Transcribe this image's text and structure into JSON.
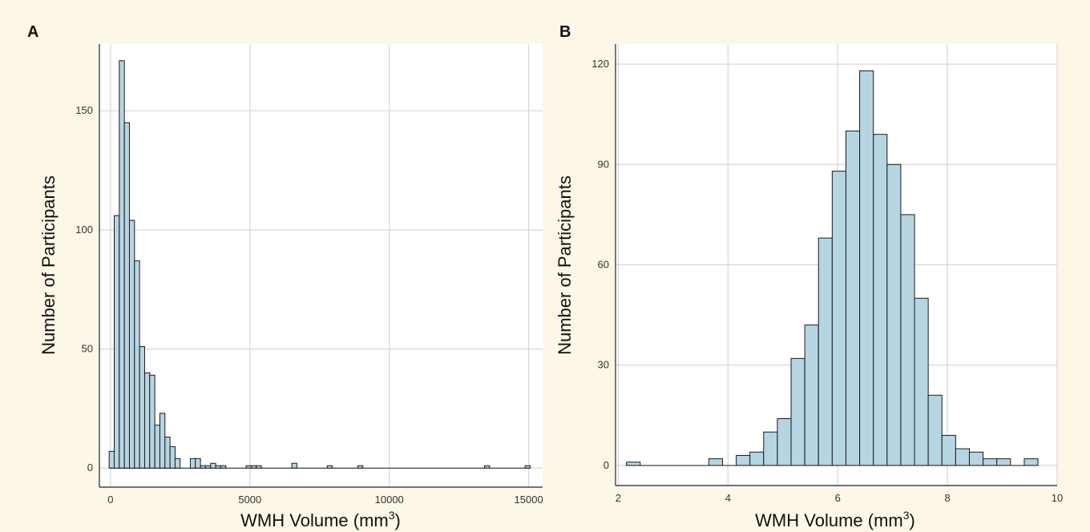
{
  "colors": {
    "background": "#fdf7e8",
    "plot_background": "#ffffff",
    "bar_fill": "#b6d5e2",
    "bar_stroke": "#1a1a1a",
    "grid": "#d3d3d3",
    "axis": "#222222"
  },
  "chart_data": [
    {
      "panel": "A",
      "type": "bar",
      "subtype": "histogram",
      "xlabel": "WMH Volume (mm",
      "xlabel_superscript": "3",
      "xlabel_suffix": ")",
      "ylabel": "Number of Participants",
      "xlim": [
        -400,
        15500
      ],
      "ylim": [
        -8,
        178
      ],
      "xticks": [
        0,
        5000,
        10000,
        15000
      ],
      "yticks": [
        0,
        50,
        100,
        150
      ],
      "xtick_labels": [
        "0",
        "5000",
        "10000",
        "15000"
      ],
      "ytick_labels": [
        "0",
        "50",
        "100",
        "150"
      ],
      "grid": true,
      "bin_width": 182,
      "bins": [
        {
          "x0": -50,
          "count": 7
        },
        {
          "x0": 132,
          "count": 106
        },
        {
          "x0": 314,
          "count": 171
        },
        {
          "x0": 496,
          "count": 145
        },
        {
          "x0": 678,
          "count": 104
        },
        {
          "x0": 860,
          "count": 87
        },
        {
          "x0": 1042,
          "count": 51
        },
        {
          "x0": 1224,
          "count": 40
        },
        {
          "x0": 1406,
          "count": 39
        },
        {
          "x0": 1588,
          "count": 18
        },
        {
          "x0": 1770,
          "count": 23
        },
        {
          "x0": 1952,
          "count": 13
        },
        {
          "x0": 2134,
          "count": 9
        },
        {
          "x0": 2316,
          "count": 4
        },
        {
          "x0": 2862,
          "count": 4
        },
        {
          "x0": 3044,
          "count": 4
        },
        {
          "x0": 3226,
          "count": 1
        },
        {
          "x0": 3408,
          "count": 1
        },
        {
          "x0": 3590,
          "count": 2
        },
        {
          "x0": 3772,
          "count": 1
        },
        {
          "x0": 3954,
          "count": 1
        },
        {
          "x0": 4864,
          "count": 1
        },
        {
          "x0": 5046,
          "count": 1
        },
        {
          "x0": 5228,
          "count": 1
        },
        {
          "x0": 6502,
          "count": 2
        },
        {
          "x0": 7776,
          "count": 1
        },
        {
          "x0": 8868,
          "count": 1
        },
        {
          "x0": 13418,
          "count": 1
        },
        {
          "x0": 14874,
          "count": 1
        }
      ]
    },
    {
      "panel": "B",
      "type": "bar",
      "subtype": "histogram",
      "xlabel": "WMH Volume (mm",
      "xlabel_superscript": "3",
      "xlabel_suffix": ")",
      "ylabel": "Number of Participants",
      "xlim": [
        1.95,
        10.0
      ],
      "ylim": [
        -6,
        126
      ],
      "xticks": [
        2,
        4,
        6,
        8,
        10
      ],
      "yticks": [
        0,
        30,
        60,
        90,
        120
      ],
      "xtick_labels": [
        "2",
        "4",
        "6",
        "8",
        "10"
      ],
      "ytick_labels": [
        "0",
        "30",
        "60",
        "90",
        "120"
      ],
      "grid": true,
      "bin_width": 0.25,
      "bins": [
        {
          "x0": 2.15,
          "count": 1
        },
        {
          "x0": 3.65,
          "count": 2
        },
        {
          "x0": 4.15,
          "count": 3
        },
        {
          "x0": 4.4,
          "count": 4
        },
        {
          "x0": 4.65,
          "count": 10
        },
        {
          "x0": 4.9,
          "count": 14
        },
        {
          "x0": 5.15,
          "count": 32
        },
        {
          "x0": 5.4,
          "count": 42
        },
        {
          "x0": 5.65,
          "count": 68
        },
        {
          "x0": 5.9,
          "count": 88
        },
        {
          "x0": 6.15,
          "count": 100
        },
        {
          "x0": 6.4,
          "count": 118
        },
        {
          "x0": 6.65,
          "count": 99
        },
        {
          "x0": 6.9,
          "count": 90
        },
        {
          "x0": 7.15,
          "count": 75
        },
        {
          "x0": 7.4,
          "count": 50
        },
        {
          "x0": 7.65,
          "count": 21
        },
        {
          "x0": 7.9,
          "count": 9
        },
        {
          "x0": 8.15,
          "count": 5
        },
        {
          "x0": 8.4,
          "count": 4
        },
        {
          "x0": 8.65,
          "count": 2
        },
        {
          "x0": 8.9,
          "count": 2
        },
        {
          "x0": 9.4,
          "count": 2
        }
      ]
    }
  ]
}
